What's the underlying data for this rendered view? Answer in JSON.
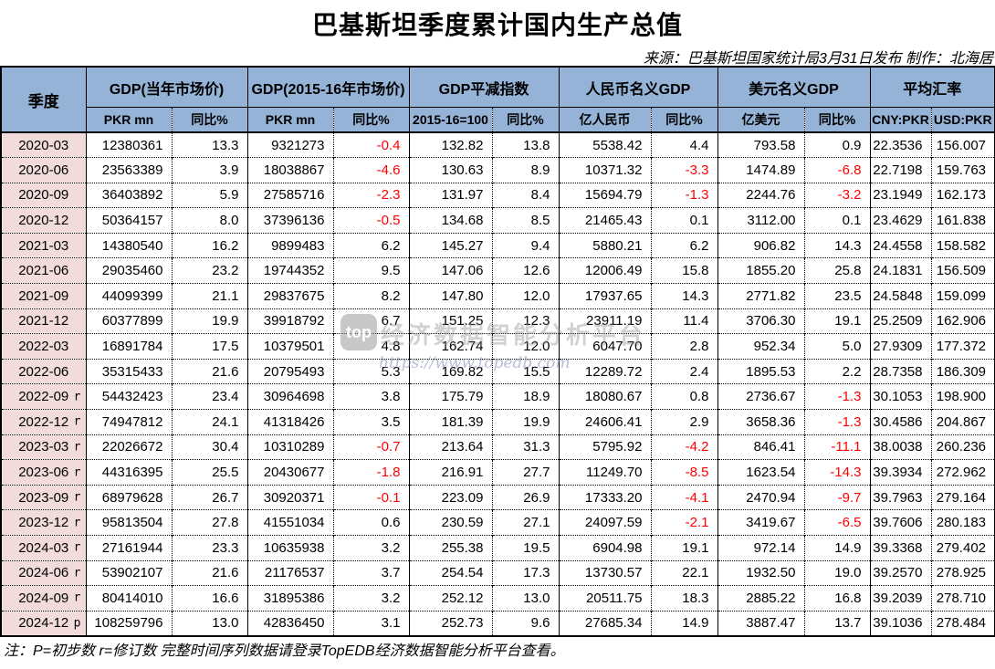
{
  "page": {
    "title": "巴基斯坦季度累计国内生产总值",
    "source": "来源：巴基斯坦国家统计局3月31日发布 制作：北海居",
    "note": "注：P=初步数 r=修订数 完整时间序列数据请登录TopEDB经济数据智能分析平台查看。"
  },
  "watermark": {
    "logo": "top",
    "text": "经济数据智能分析平台",
    "url": "https://www.topedb.com"
  },
  "colors": {
    "header_bg": "#95B3D7",
    "quarter_bg": "#F2DCDB",
    "negative": "#FF0000",
    "border": "#000000"
  },
  "chart_data": {
    "type": "table",
    "title": "巴基斯坦季度累计国内生产总值",
    "quarter_header": "季度",
    "groups": [
      {
        "label": "GDP(当年市场价)",
        "sub": [
          "PKR mn",
          "同比%"
        ]
      },
      {
        "label": "GDP(2015-16年市场价)",
        "sub": [
          "PKR mn",
          "同比%"
        ]
      },
      {
        "label": "GDP平减指数",
        "sub": [
          "2015-16=100",
          "同比%"
        ]
      },
      {
        "label": "人民币名义GDP",
        "sub": [
          "亿人民币",
          "同比%"
        ]
      },
      {
        "label": "美元名义GDP",
        "sub": [
          "亿美元",
          "同比%"
        ]
      },
      {
        "label": "平均汇率",
        "sub": [
          "CNY:PKR",
          "USD:PKR"
        ]
      }
    ],
    "rows": [
      {
        "quarter": "2020-03",
        "marker": "",
        "values": [
          "12380361",
          "13.3",
          "9321273",
          "-0.4",
          "132.82",
          "13.8",
          "5538.42",
          "4.4",
          "793.58",
          "0.9",
          "22.3536",
          "156.007"
        ]
      },
      {
        "quarter": "2020-06",
        "marker": "",
        "values": [
          "23563389",
          "3.9",
          "18038867",
          "-4.6",
          "130.63",
          "8.9",
          "10371.32",
          "-3.3",
          "1474.89",
          "-6.8",
          "22.7198",
          "159.763"
        ]
      },
      {
        "quarter": "2020-09",
        "marker": "",
        "values": [
          "36403892",
          "5.9",
          "27585716",
          "-2.3",
          "131.97",
          "8.4",
          "15694.79",
          "-1.3",
          "2244.76",
          "-3.2",
          "23.1949",
          "162.173"
        ]
      },
      {
        "quarter": "2020-12",
        "marker": "",
        "values": [
          "50364157",
          "8.0",
          "37396136",
          "-0.5",
          "134.68",
          "8.5",
          "21465.43",
          "0.1",
          "3112.00",
          "0.1",
          "23.4629",
          "161.838"
        ]
      },
      {
        "quarter": "2021-03",
        "marker": "",
        "values": [
          "14380540",
          "16.2",
          "9899483",
          "6.2",
          "145.27",
          "9.4",
          "5880.21",
          "6.2",
          "906.82",
          "14.3",
          "24.4558",
          "158.582"
        ]
      },
      {
        "quarter": "2021-06",
        "marker": "",
        "values": [
          "29035460",
          "23.2",
          "19744352",
          "9.5",
          "147.06",
          "12.6",
          "12006.49",
          "15.8",
          "1855.20",
          "25.8",
          "24.1831",
          "156.509"
        ]
      },
      {
        "quarter": "2021-09",
        "marker": "",
        "values": [
          "44099399",
          "21.1",
          "29837675",
          "8.2",
          "147.80",
          "12.0",
          "17937.65",
          "14.3",
          "2771.82",
          "23.5",
          "24.5848",
          "159.099"
        ]
      },
      {
        "quarter": "2021-12",
        "marker": "",
        "values": [
          "60377899",
          "19.9",
          "39918792",
          "6.7",
          "151.25",
          "12.3",
          "23911.19",
          "11.4",
          "3706.30",
          "19.1",
          "25.2509",
          "162.906"
        ]
      },
      {
        "quarter": "2022-03",
        "marker": "",
        "values": [
          "16891784",
          "17.5",
          "10379501",
          "4.8",
          "162.74",
          "12.0",
          "6047.70",
          "2.8",
          "952.34",
          "5.0",
          "27.9309",
          "177.372"
        ]
      },
      {
        "quarter": "2022-06",
        "marker": "",
        "values": [
          "35315433",
          "21.6",
          "20795493",
          "5.3",
          "169.82",
          "15.5",
          "12289.72",
          "2.4",
          "1895.53",
          "2.2",
          "28.7358",
          "186.309"
        ]
      },
      {
        "quarter": "2022-09",
        "marker": "r",
        "values": [
          "54432423",
          "23.4",
          "30964698",
          "3.8",
          "175.79",
          "18.9",
          "18080.67",
          "0.8",
          "2736.67",
          "-1.3",
          "30.1053",
          "198.900"
        ]
      },
      {
        "quarter": "2022-12",
        "marker": "r",
        "values": [
          "74947812",
          "24.1",
          "41318426",
          "3.5",
          "181.39",
          "19.9",
          "24606.41",
          "2.9",
          "3658.36",
          "-1.3",
          "30.4586",
          "204.867"
        ]
      },
      {
        "quarter": "2023-03",
        "marker": "r",
        "values": [
          "22026672",
          "30.4",
          "10310289",
          "-0.7",
          "213.64",
          "31.3",
          "5795.92",
          "-4.2",
          "846.41",
          "-11.1",
          "38.0038",
          "260.236"
        ]
      },
      {
        "quarter": "2023-06",
        "marker": "r",
        "values": [
          "44316395",
          "25.5",
          "20430677",
          "-1.8",
          "216.91",
          "27.7",
          "11249.70",
          "-8.5",
          "1623.54",
          "-14.3",
          "39.3934",
          "272.962"
        ]
      },
      {
        "quarter": "2023-09",
        "marker": "r",
        "values": [
          "68979628",
          "26.7",
          "30920371",
          "-0.1",
          "223.09",
          "26.9",
          "17333.20",
          "-4.1",
          "2470.94",
          "-9.7",
          "39.7963",
          "279.164"
        ]
      },
      {
        "quarter": "2023-12",
        "marker": "r",
        "values": [
          "95813504",
          "27.8",
          "41551034",
          "0.6",
          "230.59",
          "27.1",
          "24097.59",
          "-2.1",
          "3419.67",
          "-6.5",
          "39.7606",
          "280.183"
        ]
      },
      {
        "quarter": "2024-03",
        "marker": "r",
        "values": [
          "27161944",
          "23.3",
          "10635938",
          "3.2",
          "255.38",
          "19.5",
          "6904.98",
          "19.1",
          "972.14",
          "14.9",
          "39.3368",
          "279.402"
        ]
      },
      {
        "quarter": "2024-06",
        "marker": "r",
        "values": [
          "53902107",
          "21.6",
          "21176537",
          "3.7",
          "254.54",
          "17.3",
          "13730.57",
          "22.1",
          "1932.50",
          "19.0",
          "39.2570",
          "278.925"
        ]
      },
      {
        "quarter": "2024-09",
        "marker": "r",
        "values": [
          "80414010",
          "16.6",
          "31895386",
          "3.2",
          "252.12",
          "13.0",
          "20511.75",
          "18.3",
          "2885.22",
          "16.8",
          "39.2039",
          "278.710"
        ]
      },
      {
        "quarter": "2024-12",
        "marker": "p",
        "values": [
          "108259796",
          "13.0",
          "42836450",
          "3.1",
          "252.73",
          "9.6",
          "27685.34",
          "14.9",
          "3887.47",
          "13.7",
          "39.1036",
          "278.484"
        ]
      }
    ]
  }
}
